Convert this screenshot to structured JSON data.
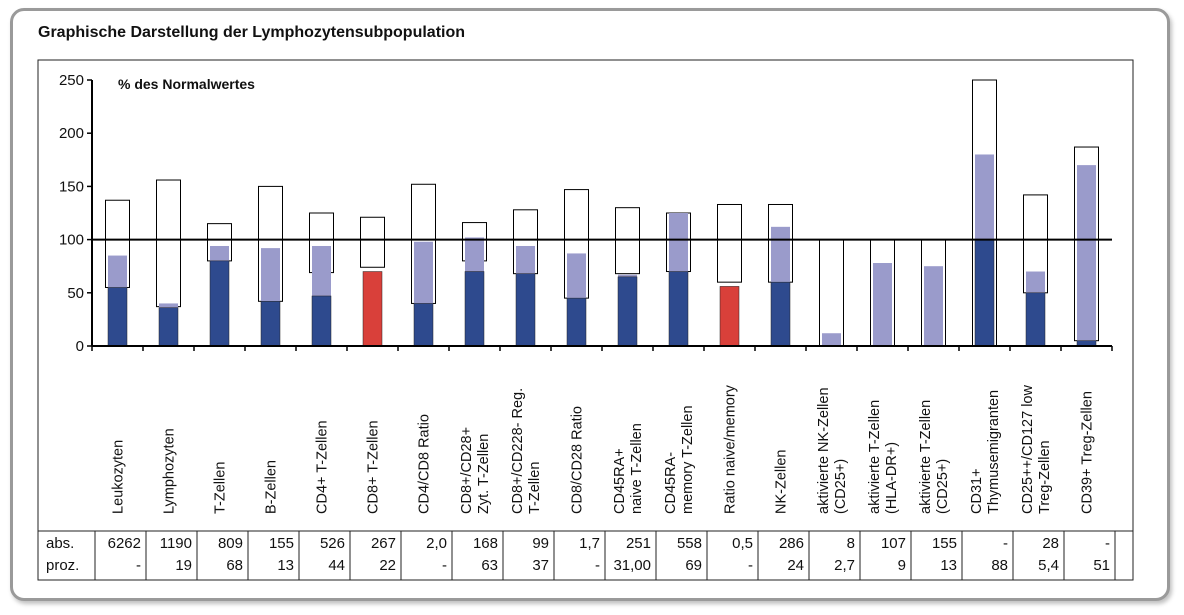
{
  "title": "Graphische Darstellung der Lymphozytensubpopulation",
  "chart_data": {
    "type": "bar",
    "annotation": "% des Normalwertes",
    "reference_line": 100,
    "ylim": [
      0,
      250
    ],
    "yticks": [
      "0",
      "50",
      "100",
      "150",
      "200",
      "250"
    ],
    "legend": "none",
    "colors": {
      "patient_normal": "#2e4a8e",
      "patient_low": "#d9403a",
      "value_fill": "#9a9bcb",
      "range_fill": "#ffffff",
      "range_stroke": "#000000"
    },
    "categories": [
      [
        "Leukozyten"
      ],
      [
        "Lymphozyten"
      ],
      [
        "T-Zellen"
      ],
      [
        "B-Zellen"
      ],
      [
        "CD4+ T-Zellen"
      ],
      [
        "CD8+ T-Zellen"
      ],
      [
        "CD4/CD8 Ratio"
      ],
      [
        "CD8+/CD28+",
        "Zyt. T-Zellen"
      ],
      [
        "CD8+/CD228- Reg.",
        "T-Zellen"
      ],
      [
        "CD8/CD28 Ratio"
      ],
      [
        "CD45RA+",
        "naive T-Zellen"
      ],
      [
        "CD45RA-",
        "memory T-Zellen"
      ],
      [
        "Ratio naive/memory"
      ],
      [
        "NK-Zellen"
      ],
      [
        "aktivierte NK-Zellen",
        "(CD25+)"
      ],
      [
        "aktivierte T-Zellen",
        "(HLA-DR+)"
      ],
      [
        "aktivierte T-Zellen",
        "(CD25+)"
      ],
      [
        "CD31+",
        "Thymusemigranten"
      ],
      [
        "CD25++/CD127 low",
        "Treg-Zellen"
      ],
      [
        "CD39+ Treg-Zellen"
      ]
    ],
    "range_low": [
      55,
      37,
      80,
      42,
      69,
      74,
      40,
      80,
      68,
      45,
      68,
      70,
      60,
      60,
      0,
      0,
      0,
      0,
      50,
      5
    ],
    "range_high": [
      137,
      156,
      115,
      150,
      125,
      121,
      152,
      116,
      128,
      147,
      130,
      125,
      133,
      133,
      100,
      100,
      100,
      250,
      142,
      187
    ],
    "value_light": [
      85,
      40,
      94,
      92,
      94,
      0,
      98,
      102,
      94,
      87,
      67,
      125,
      0,
      112,
      12,
      78,
      75,
      180,
      70,
      170
    ],
    "value_dark": [
      55,
      36,
      80,
      42,
      47,
      70,
      40,
      70,
      68,
      45,
      65,
      70,
      56,
      60,
      0,
      0,
      0,
      100,
      50,
      5
    ],
    "dark_color": [
      "n",
      "n",
      "n",
      "n",
      "n",
      "r",
      "n",
      "n",
      "n",
      "n",
      "n",
      "n",
      "r",
      "n",
      "n",
      "n",
      "n",
      "n",
      "n",
      "n"
    ],
    "table": {
      "row_labels": [
        "abs.",
        "proz."
      ],
      "abs": [
        "6262",
        "1190",
        "809",
        "155",
        "526",
        "267",
        "2,0",
        "168",
        "99",
        "1,7",
        "251",
        "558",
        "0,5",
        "286",
        "8",
        "107",
        "155",
        "-",
        "28",
        "-"
      ],
      "proz": [
        "-",
        "19",
        "68",
        "13",
        "44",
        "22",
        "-",
        "63",
        "37",
        "-",
        "31,00",
        "69",
        "-",
        "24",
        "2,7",
        "9",
        "13",
        "88",
        "5,4",
        "51"
      ]
    }
  }
}
